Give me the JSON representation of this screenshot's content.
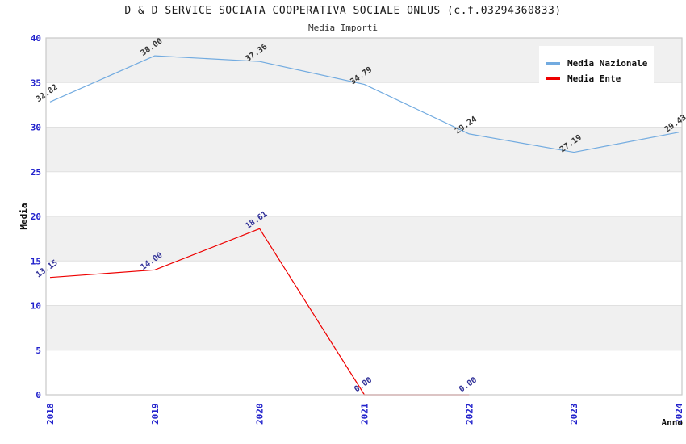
{
  "chart_data": {
    "type": "line",
    "title": "D & D SERVICE SOCIATA COOPERATIVA SOCIALE ONLUS (c.f.03294360833)",
    "subtitle": "Media Importi",
    "x": [
      "2018",
      "2019",
      "2020",
      "2021",
      "2022",
      "2023",
      "2024"
    ],
    "xlabel": "Anno",
    "ylabel": "Media",
    "ylim": [
      0,
      40
    ],
    "yticks": [
      0,
      5,
      10,
      15,
      20,
      25,
      30,
      35,
      40
    ],
    "grid": "horizontal-bands-alternating",
    "legend_position": "top-right",
    "series": [
      {
        "name": "Media Nazionale",
        "color": "#72ABE0",
        "values": [
          32.82,
          38.0,
          37.36,
          34.79,
          29.24,
          27.19,
          29.43
        ],
        "point_labels": [
          "32.82",
          "38.00",
          "37.36",
          "34.79",
          "29.24",
          "27.19",
          "29.43"
        ],
        "label_color": "#333333"
      },
      {
        "name": "Media Ente",
        "color": "#EE0000",
        "values": [
          13.15,
          14.0,
          18.61,
          0.0,
          0.0
        ],
        "point_labels": [
          "13.15",
          "14.00",
          "18.61",
          "0.00",
          "0.00"
        ],
        "label_color": "#333399"
      }
    ],
    "colors": {
      "band_gray": "#F0F0F0",
      "gridline": "#E0E0E0",
      "plot_border": "#C9C9C9",
      "tick_label_blue": "#2222CC",
      "axis_title": "#111111"
    }
  }
}
